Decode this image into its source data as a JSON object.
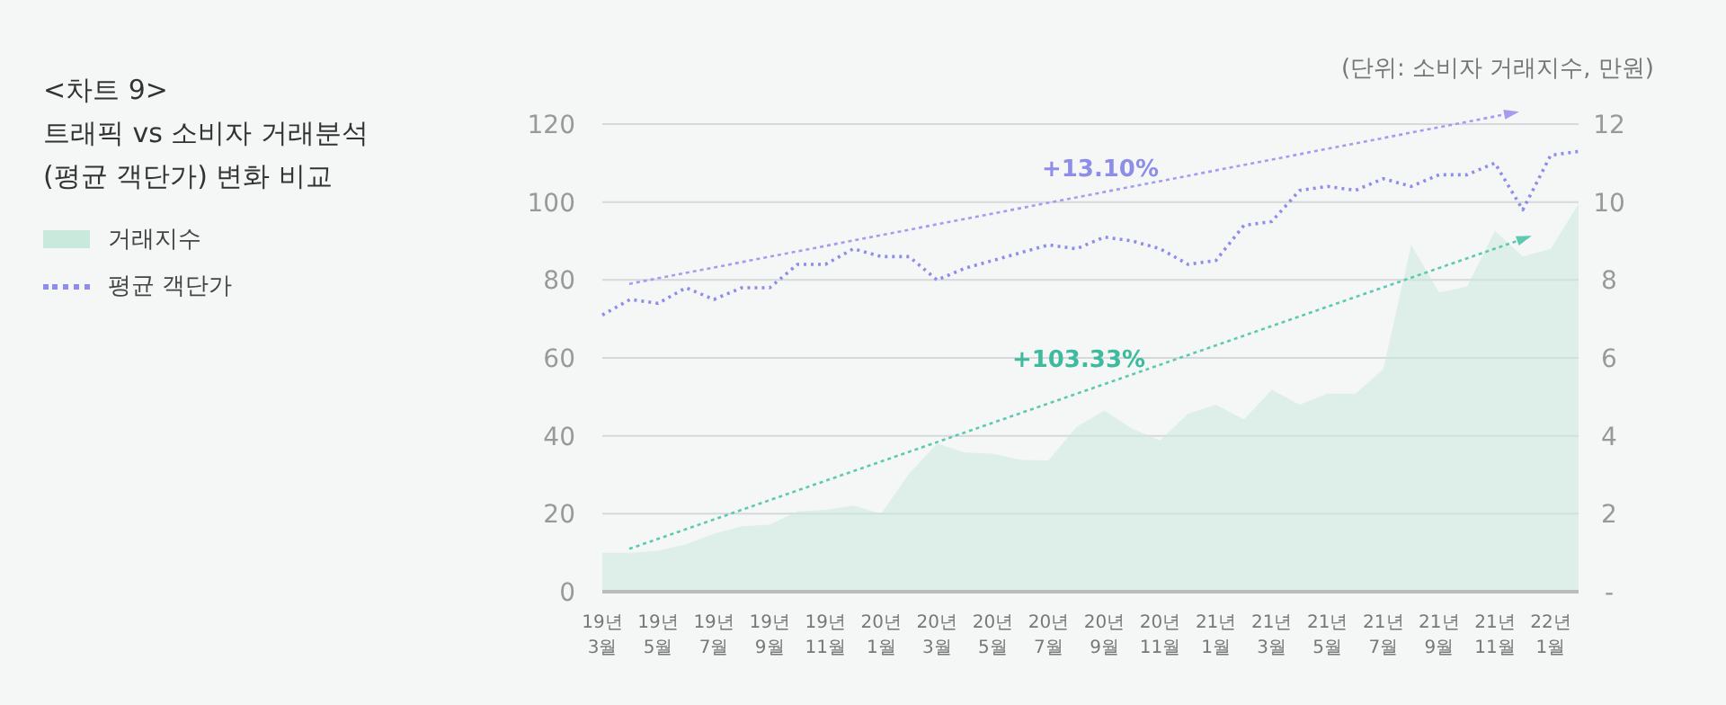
{
  "chart_data": {
    "type": "area",
    "title": "<차트 9>",
    "subtitle": "트래픽 vs 소비자 거래분석 (평균 객단가) 변화 비교",
    "categories": [
      "19년 3월",
      null,
      "19년 5월",
      null,
      "19년 7월",
      null,
      "19년 9월",
      null,
      "19년 11월",
      null,
      "20년 1월",
      null,
      "20년 3월",
      null,
      "20년 5월",
      null,
      "20년 7월",
      null,
      "20년 9월",
      null,
      "20년 11월",
      null,
      "21년 1월",
      null,
      "21년 3월",
      null,
      "21년 5월",
      null,
      "21년 7월",
      null,
      "21년 9월",
      null,
      "21년 11월",
      null,
      "22년 1월",
      null
    ],
    "series": [
      {
        "name": "거래지수",
        "color": "#c9e9dc",
        "values": [
          10,
          10,
          10.5,
          12.2,
          14.9,
          16.8,
          17.2,
          20.6,
          21,
          22.1,
          20,
          30.3,
          38,
          35.7,
          35.4,
          33.8,
          33.7,
          42.3,
          46.5,
          41.8,
          38.8,
          45.7,
          48,
          44.2,
          51.8,
          48,
          50.8,
          50.8,
          57.1,
          89,
          76.8,
          78.3,
          92.6,
          86,
          88,
          99.5
        ]
      },
      {
        "name": "평균 객단가",
        "type": "line",
        "axis": "y2",
        "color": "#8e8ee8",
        "line_style": "dotted",
        "values": [
          7.1,
          7.5,
          7.4,
          7.8,
          7.5,
          7.8,
          7.8,
          8.4,
          8.4,
          8.8,
          8.6,
          8.6,
          8.0,
          8.3,
          8.5,
          8.7,
          8.9,
          8.8,
          9.1,
          9.0,
          8.8,
          8.4,
          8.5,
          9.4,
          9.5,
          10.3,
          10.4,
          10.3,
          10.6,
          10.4,
          10.7,
          10.7,
          11.0,
          9.8,
          11.2,
          11.3
        ]
      }
    ],
    "ylim": [
      0,
      120
    ],
    "yticks": [
      0,
      20,
      40,
      60,
      80,
      100,
      120
    ],
    "y2lim": [
      0,
      12
    ],
    "y2ticks": [
      {
        "value": 0,
        "label": "-"
      },
      2,
      4,
      6,
      8,
      10,
      12
    ],
    "grid": "y",
    "legend": "left",
    "marker": "none",
    "annotations": [
      "+13.10%",
      "+103.33%",
      "(단위: 소비자 거래지수, 만원)"
    ]
  }
}
